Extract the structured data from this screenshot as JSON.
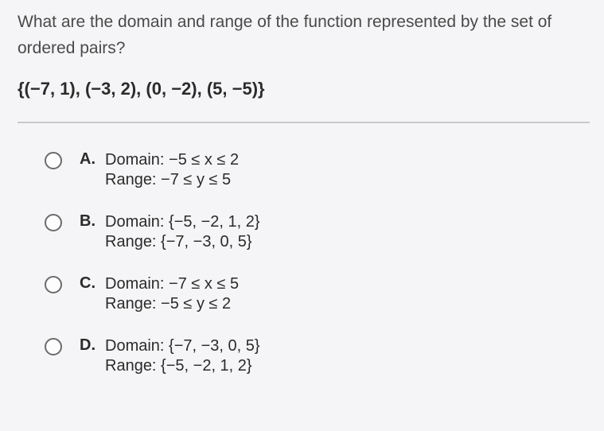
{
  "question": {
    "line1": "What are the domain and range of the function represented by the set of",
    "line2": "ordered pairs?"
  },
  "expression": "{(−7, 1), (−3, 2), (0, −2), (5, −5)}",
  "choices": [
    {
      "letter": "A.",
      "line1": "Domain: −5 ≤ x ≤ 2",
      "line2": "Range: −7 ≤ y ≤ 5"
    },
    {
      "letter": "B.",
      "line1": "Domain: {−5, −2, 1, 2}",
      "line2": "Range: {−7, −3, 0, 5}"
    },
    {
      "letter": "C.",
      "line1": "Domain: −7 ≤ x ≤ 5",
      "line2": "Range: −5 ≤ y ≤ 2"
    },
    {
      "letter": "D.",
      "line1": "Domain: {−7, −3, 0, 5}",
      "line2": "Range: {−5, −2, 1, 2}"
    }
  ]
}
